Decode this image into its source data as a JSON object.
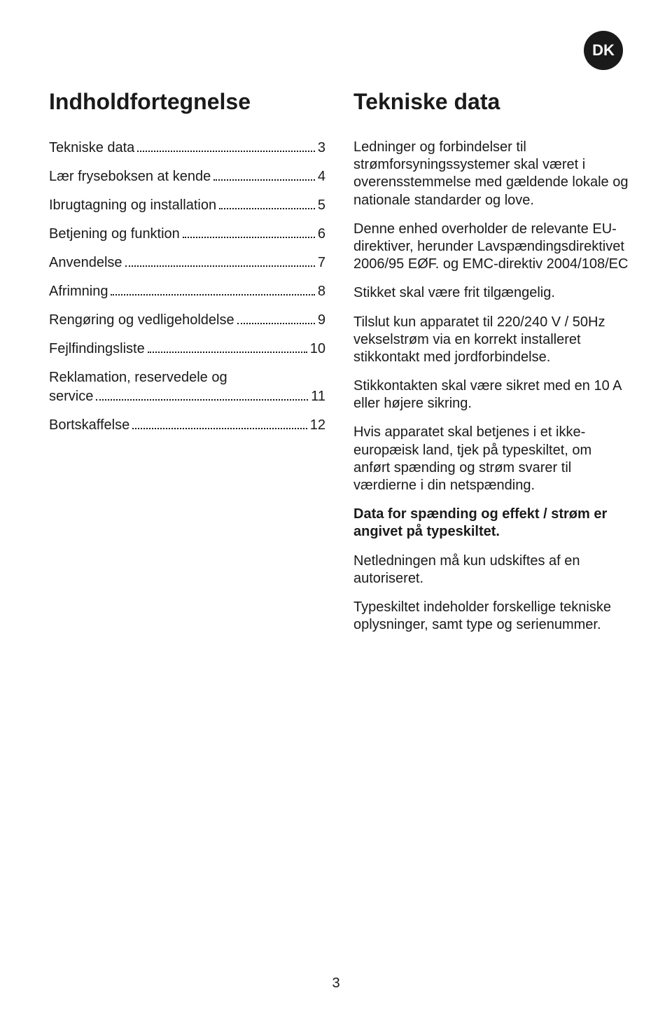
{
  "badge": {
    "label": "DK"
  },
  "left": {
    "title": "Indholdfortegnelse",
    "toc": [
      {
        "label": "Tekniske data",
        "page": "3"
      },
      {
        "label": "Lær fryseboksen at kende",
        "page": "4"
      },
      {
        "label": "Ibrugtagning og installation",
        "page": "5"
      },
      {
        "label": "Betjening og funktion",
        "page": "6"
      },
      {
        "label": "Anvendelse",
        "page": "7"
      },
      {
        "label": "Afrimning",
        "page": "8"
      },
      {
        "label": "Rengøring og vedligeholdelse",
        "page": "9"
      },
      {
        "label": "Fejlfindingsliste",
        "page": "10"
      },
      {
        "label_line1": "Reklamation, reservedele og",
        "label_line2": "service",
        "page": "11",
        "multiline": true
      },
      {
        "label": "Bortskaffelse",
        "page": "12"
      }
    ]
  },
  "right": {
    "title": "Tekniske data",
    "paragraphs": [
      {
        "text": "Ledninger og forbindelser til strømforsyningssystemer skal været i overensstemmelse med gældende lokale og nationale standarder og love.",
        "bold": false
      },
      {
        "text": "Denne enhed overholder de relevante EU-direktiver, herunder Lavspændingsdirektivet 2006/95 EØF. og EMC-direktiv 2004/108/EC",
        "bold": false
      },
      {
        "text": "Stikket skal være frit tilgængelig.",
        "bold": false
      },
      {
        "text": "Tilslut kun apparatet til 220/240 V / 50Hz vekselstrøm via en korrekt installeret stikkontakt med jordforbindelse.",
        "bold": false
      },
      {
        "text": "Stikkontakten skal være sikret med en 10 A eller højere sikring.",
        "bold": false
      },
      {
        "text": "Hvis apparatet skal betjenes i et ikke-europæisk land, tjek på typeskiltet, om anført spænding og strøm svarer til værdierne i din netspænding.",
        "bold": false
      },
      {
        "text": "Data for spænding og effekt / strøm er angivet på typeskiltet.",
        "bold": true
      },
      {
        "text": "Netledningen må kun udskiftes af en autoriseret.",
        "bold": false
      },
      {
        "text": "Typeskiltet indeholder forskellige tekniske oplysninger, samt type og serienummer.",
        "bold": false
      }
    ]
  },
  "pageNumber": "3"
}
